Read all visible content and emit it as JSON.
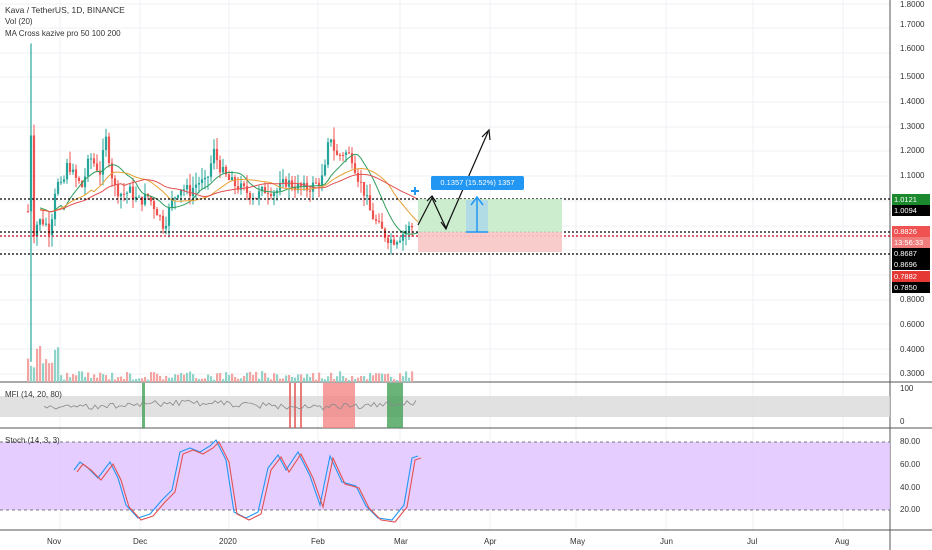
{
  "header": {
    "symbol_line": "Kava / TetherUS, 1D, BINANCE",
    "indicator_vol": "Vol (20)",
    "indicator_ma": "MA Cross kazive pro 50 100 200"
  },
  "price_axis": {
    "ticks": [
      "1.8000",
      "1.7000",
      "1.6000",
      "1.5000",
      "1.4000",
      "1.3000",
      "1.2000",
      "1.1000",
      "1.0000",
      "0.9000",
      "0.8000",
      "0.7000",
      "0.6000",
      "0.5000",
      "0.4000",
      "0.3000"
    ]
  },
  "price_tags": [
    {
      "label": "1.0121",
      "color": "#1b8a2e"
    },
    {
      "label": "1.0094",
      "color": "#000000"
    },
    {
      "label": "0.8826",
      "color": "#f05252"
    },
    {
      "label": "13:56:33",
      "color": "#f07c7c"
    },
    {
      "label": "0.8687",
      "color": "#000000"
    },
    {
      "label": "0.8696",
      "color": "#000000"
    },
    {
      "label": "0.7882",
      "color": "#e53935"
    },
    {
      "label": "0.7850",
      "color": "#000000"
    }
  ],
  "position_label": "0.1357 (15.52%) 1357",
  "mfi": {
    "label": "MFI (14, 20, 80)",
    "ticks": [
      "100",
      "0"
    ]
  },
  "stoch": {
    "label": "Stoch (14, 3, 3)",
    "ticks": [
      "80.00",
      "60.00",
      "40.00",
      "20.00"
    ]
  },
  "time_axis": {
    "labels": [
      "Nov",
      "Dec",
      "2020",
      "Feb",
      "Mar",
      "Apr",
      "May",
      "Jun",
      "Jul",
      "Aug"
    ]
  },
  "colors": {
    "up": "#26a69a",
    "down": "#ef5350",
    "stoch_bg": "#e1c5ff",
    "position_label_bg": "#2196f3"
  }
}
